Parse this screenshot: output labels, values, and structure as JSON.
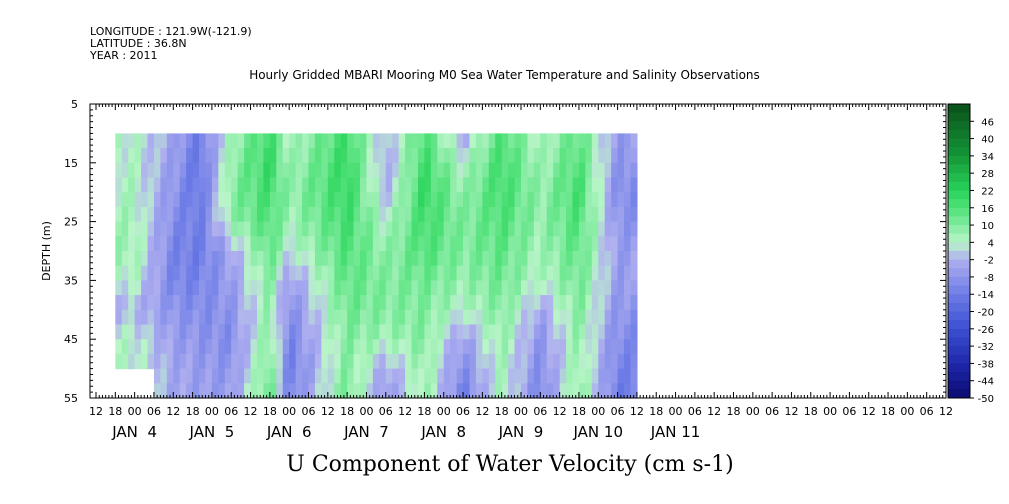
{
  "header": {
    "longitude": "LONGITUDE : 121.9W(-121.9)",
    "latitude": "LATITUDE : 36.8N",
    "year": "YEAR : 2011"
  },
  "chart_data": {
    "type": "heatmap",
    "title": "Hourly Gridded MBARI Mooring M0 Sea Water Temperature and Salinity Observations",
    "xlabel": "U Component of Water Velocity (cm s-1)",
    "ylabel": "DEPTH (m)",
    "ylim": [
      55,
      5
    ],
    "y_ticks": [
      5,
      15,
      25,
      35,
      45,
      55
    ],
    "x_hour_ticks": [
      "12",
      "18",
      "00",
      "06",
      "12",
      "18",
      "00",
      "06",
      "12",
      "18",
      "00",
      "06",
      "12",
      "18",
      "00",
      "06",
      "12",
      "18",
      "00",
      "06",
      "12",
      "18",
      "00",
      "06",
      "12",
      "18",
      "00",
      "06",
      "12",
      "18",
      "00",
      "06",
      "12",
      "18",
      "00",
      "06",
      "12",
      "18",
      "00",
      "06",
      "12",
      "18",
      "00",
      "06",
      "12"
    ],
    "x_day_labels": [
      "JAN  4",
      "JAN  5",
      "JAN  6",
      "JAN  7",
      "JAN  8",
      "JAN  9",
      "JAN 10",
      "JAN 11"
    ],
    "colorbar_labels": [
      "46",
      "40",
      "34",
      "28",
      "22",
      "16",
      "10",
      "4",
      "-2",
      "-8",
      "-14",
      "-20",
      "-26",
      "-32",
      "-38",
      "-44",
      "-50"
    ],
    "colorbar_range": [
      -50,
      52
    ],
    "colors": {
      "negative_strong": "#0a0a8c",
      "negative_mid": "#6f7fe0",
      "negative_light": "#b3b3f0",
      "positive_light": "#b8f5c8",
      "positive_mid": "#3ddc6a",
      "positive_strong": "#0b5c1f"
    },
    "data_extent": {
      "start": "JAN 4 18:00",
      "end": "JAN 11 12:00",
      "depth_top": 10,
      "depth_bottom": 55
    },
    "time_columns_velocity_cm_s_by_depth": {
      "depths": [
        10,
        15,
        20,
        25,
        30,
        35,
        40,
        45,
        50,
        55
      ],
      "description_units": "cm s-1",
      "profile_samples": [
        {
          "time": "JAN 5 00",
          "values": [
            4,
            4,
            5,
            6,
            7,
            4,
            -2,
            4,
            4,
            null
          ]
        },
        {
          "time": "JAN 5 12",
          "values": [
            -4,
            -6,
            -8,
            -10,
            -12,
            -12,
            -8,
            -6,
            -4,
            -4
          ]
        },
        {
          "time": "JAN 5 20",
          "values": [
            -14,
            -16,
            -16,
            -14,
            -14,
            -12,
            -10,
            -8,
            -6,
            -6
          ]
        },
        {
          "time": "JAN 6 06",
          "values": [
            6,
            8,
            10,
            8,
            -4,
            -6,
            -8,
            -10,
            -8,
            -6
          ]
        },
        {
          "time": "JAN 6 18",
          "values": [
            18,
            20,
            18,
            16,
            14,
            10,
            8,
            10,
            12,
            14
          ]
        },
        {
          "time": "JAN 7 00",
          "values": [
            4,
            6,
            8,
            6,
            2,
            -6,
            -10,
            -12,
            -14,
            -12
          ]
        },
        {
          "time": "JAN 7 18",
          "values": [
            18,
            20,
            20,
            18,
            16,
            14,
            12,
            10,
            10,
            12
          ]
        },
        {
          "time": "JAN 8 06",
          "values": [
            -2,
            -4,
            -2,
            4,
            8,
            10,
            10,
            6,
            -4,
            -8
          ]
        },
        {
          "time": "JAN 8 18",
          "values": [
            16,
            18,
            20,
            18,
            16,
            12,
            10,
            10,
            8,
            8
          ]
        },
        {
          "time": "JAN 9 06",
          "values": [
            -4,
            4,
            8,
            10,
            10,
            8,
            4,
            -6,
            -10,
            -14
          ]
        },
        {
          "time": "JAN 9 18",
          "values": [
            16,
            18,
            18,
            16,
            14,
            12,
            10,
            8,
            6,
            6
          ]
        },
        {
          "time": "JAN 10 06",
          "values": [
            4,
            6,
            8,
            8,
            6,
            4,
            -4,
            -8,
            -10,
            -12
          ]
        },
        {
          "time": "JAN 10 18",
          "values": [
            14,
            16,
            18,
            16,
            14,
            12,
            10,
            8,
            8,
            10
          ]
        },
        {
          "time": "JAN 11 06",
          "values": [
            -6,
            -8,
            -10,
            -8,
            -6,
            -6,
            -8,
            -10,
            -12,
            -14
          ]
        }
      ]
    }
  }
}
